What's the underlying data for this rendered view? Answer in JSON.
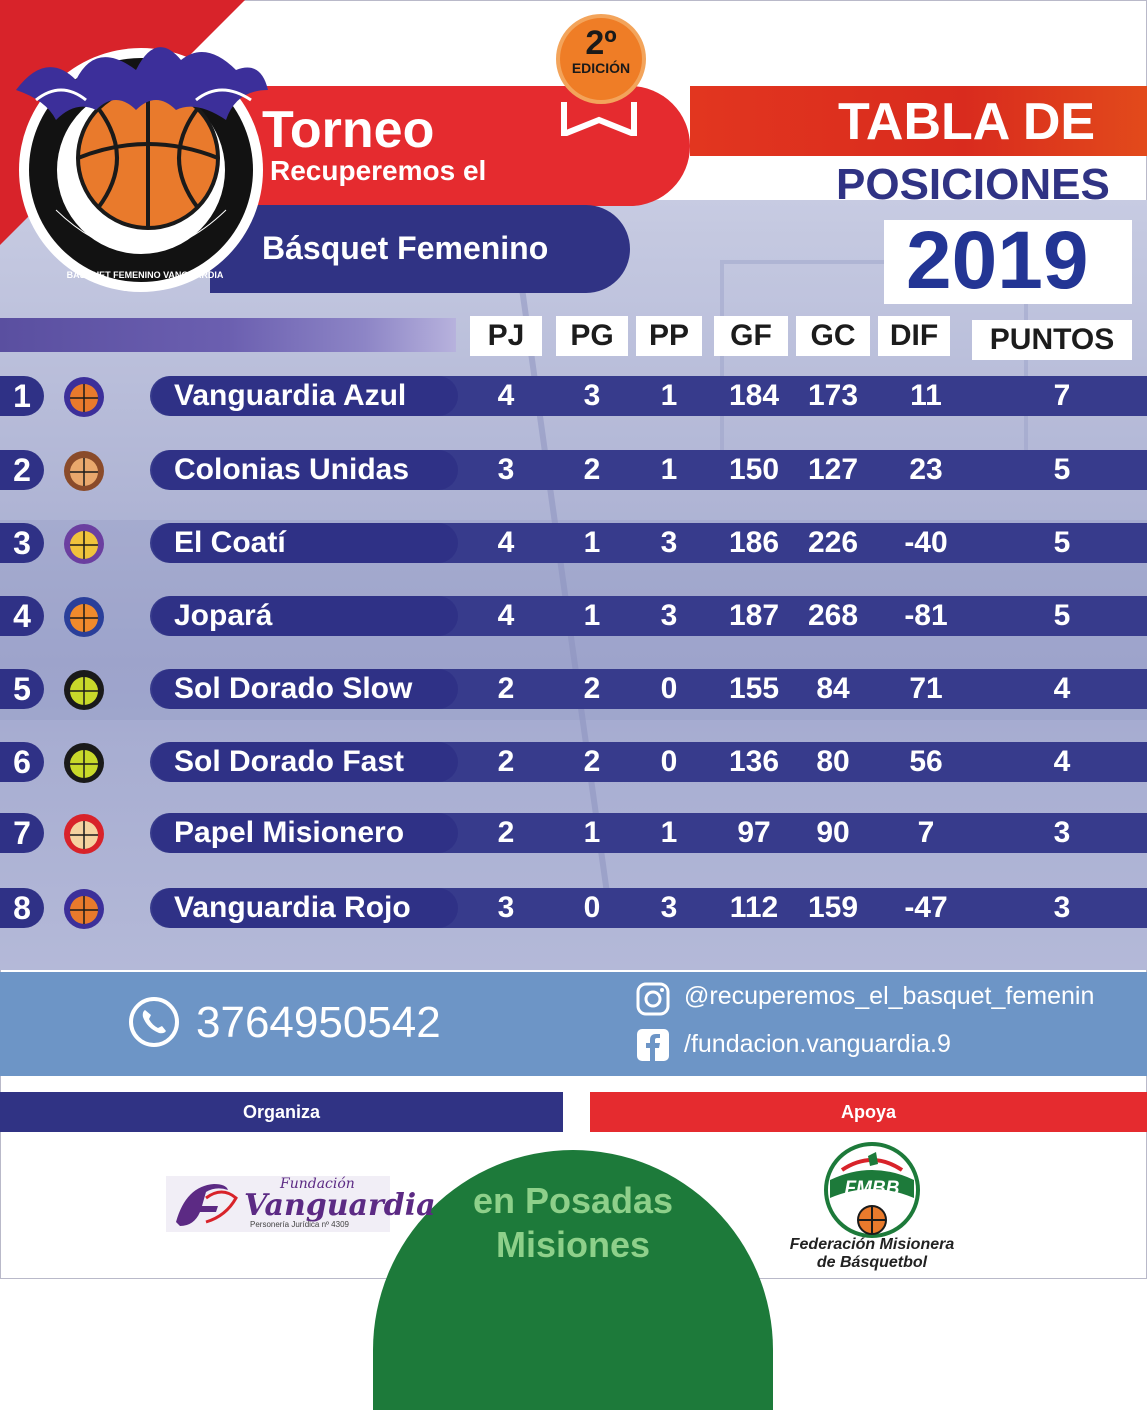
{
  "header": {
    "title_torneo": "Torneo",
    "title_recuperemos": "Recuperemos el",
    "title_basquet": "Básquet Femenino",
    "edition_number": "2º",
    "edition_label": "EDICIÓN",
    "tabla_line1": "TABLA DE",
    "tabla_line2": "POSICIONES",
    "year": "2019",
    "logo_text": "BASQUET FEMENINO VANGUARDIA"
  },
  "columns": {
    "pj": "PJ",
    "pg": "PG",
    "pp": "PP",
    "gf": "GF",
    "gc": "GC",
    "dif": "DIF",
    "puntos": "PUNTOS"
  },
  "rows": [
    {
      "rank": "1",
      "team": "Vanguardia Azul",
      "pj": "4",
      "pg": "3",
      "pp": "1",
      "gf": "184",
      "gc": "173",
      "dif": "11",
      "puntos": "7",
      "logo": "vanguardia-logo"
    },
    {
      "rank": "2",
      "team": "Colonias Unidas",
      "pj": "3",
      "pg": "2",
      "pp": "1",
      "gf": "150",
      "gc": "127",
      "dif": "23",
      "puntos": "5",
      "logo": "colonias-logo"
    },
    {
      "rank": "3",
      "team": "El Coatí",
      "pj": "4",
      "pg": "1",
      "pp": "3",
      "gf": "186",
      "gc": "226",
      "dif": "-40",
      "puntos": "5",
      "logo": "coati-logo"
    },
    {
      "rank": "4",
      "team": "Jopará",
      "pj": "4",
      "pg": "1",
      "pp": "3",
      "gf": "187",
      "gc": "268",
      "dif": "-81",
      "puntos": "5",
      "logo": "jopara-logo"
    },
    {
      "rank": "5",
      "team": "Sol Dorado Slow",
      "pj": "2",
      "pg": "2",
      "pp": "0",
      "gf": "155",
      "gc": "84",
      "dif": "71",
      "puntos": "4",
      "logo": "sol-dorado-logo"
    },
    {
      "rank": "6",
      "team": "Sol Dorado Fast",
      "pj": "2",
      "pg": "2",
      "pp": "0",
      "gf": "136",
      "gc": "80",
      "dif": "56",
      "puntos": "4",
      "logo": "sol-dorado-logo"
    },
    {
      "rank": "7",
      "team": "Papel Misionero",
      "pj": "2",
      "pg": "1",
      "pp": "1",
      "gf": "97",
      "gc": "90",
      "dif": "7",
      "puntos": "3",
      "logo": "papel-logo"
    },
    {
      "rank": "8",
      "team": "Vanguardia Rojo",
      "pj": "3",
      "pg": "0",
      "pp": "3",
      "gf": "112",
      "gc": "159",
      "dif": "-47",
      "puntos": "3",
      "logo": "vanguardia-logo"
    }
  ],
  "contact": {
    "phone": "3764950542",
    "instagram": "@recuperemos_el_basquet_femenin",
    "facebook": "/fundacion.vanguardia.9"
  },
  "footer": {
    "organiza": "Organiza",
    "apoya": "Apoya",
    "posadas_line1": "en Posadas",
    "posadas_line2": "Misiones",
    "fundacion_word": "Fundación",
    "fundacion_name": "Vanguardia",
    "fundacion_sub": "Personería Jurídica nº 4309",
    "fmbb_badge": "FMBB",
    "fmbb_line1": "Federación Misionera",
    "fmbb_line2": "de Básquetbol"
  },
  "colors": {
    "navy": "#303384",
    "red": "#e52b2f",
    "year_blue": "#233594",
    "contact_blue": "#6d95c6",
    "green": "#1d7a3a"
  }
}
